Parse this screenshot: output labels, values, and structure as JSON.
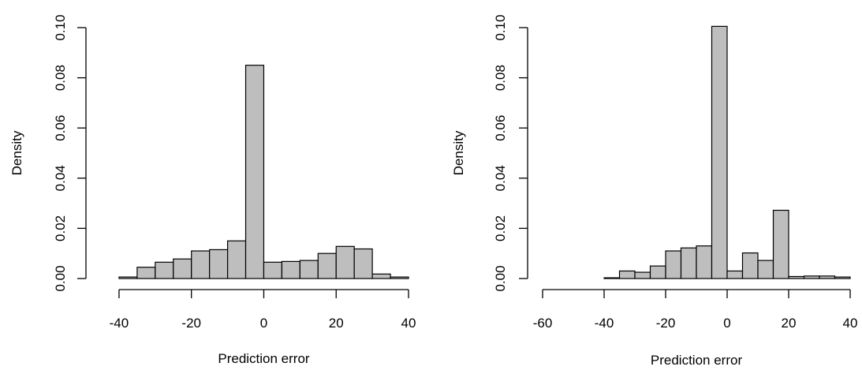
{
  "colors": {
    "bar_fill": "#bebebe",
    "bar_stroke": "#000000",
    "axis": "#000000",
    "background": "#ffffff"
  },
  "chart_data": [
    {
      "type": "bar",
      "histogram": true,
      "xlabel": "Prediction error",
      "ylabel": "Density",
      "xlim": [
        -45,
        40
      ],
      "ylim": [
        0,
        0.1
      ],
      "xticks": [
        -40,
        -20,
        0,
        20,
        40
      ],
      "xtick_labels": [
        "-40",
        "-20",
        "0",
        "20",
        "40"
      ],
      "yticks": [
        0,
        0.02,
        0.04,
        0.06,
        0.08,
        0.1
      ],
      "ytick_labels": [
        "0.00",
        "0.02",
        "0.04",
        "0.06",
        "0.08",
        "0.10"
      ],
      "bin_width": 5,
      "bin_starts": [
        -45,
        -40,
        -35,
        -30,
        -25,
        -20,
        -15,
        -10,
        -5,
        0,
        5,
        10,
        15,
        20,
        25,
        30,
        35
      ],
      "values": [
        0,
        0.0006,
        0.0045,
        0.0065,
        0.0078,
        0.011,
        0.0115,
        0.015,
        0.085,
        0.0065,
        0.0068,
        0.0072,
        0.01,
        0.0128,
        0.0118,
        0.0018,
        0.0006
      ],
      "grid": false
    },
    {
      "type": "bar",
      "histogram": true,
      "xlabel": "Prediction error",
      "ylabel": "Density",
      "xlim": [
        -60,
        40
      ],
      "ylim": [
        0,
        0.1
      ],
      "xticks": [
        -60,
        -40,
        -20,
        0,
        20,
        40
      ],
      "xtick_labels": [
        "-60",
        "-40",
        "-20",
        "0",
        "20",
        "40"
      ],
      "yticks": [
        0,
        0.02,
        0.04,
        0.06,
        0.08,
        0.1
      ],
      "ytick_labels": [
        "0.00",
        "0.02",
        "0.04",
        "0.06",
        "0.08",
        "0.10"
      ],
      "bin_width": 5,
      "bin_starts": [
        -60,
        -55,
        -50,
        -45,
        -40,
        -35,
        -30,
        -25,
        -20,
        -15,
        -10,
        -5,
        0,
        5,
        10,
        15,
        20,
        25,
        30,
        35
      ],
      "values": [
        0,
        0,
        0,
        0,
        0.0003,
        0.003,
        0.0025,
        0.005,
        0.011,
        0.0122,
        0.013,
        0.1005,
        0.003,
        0.0102,
        0.0072,
        0.0272,
        0.0008,
        0.001,
        0.001,
        0.0006
      ],
      "grid": false
    }
  ]
}
